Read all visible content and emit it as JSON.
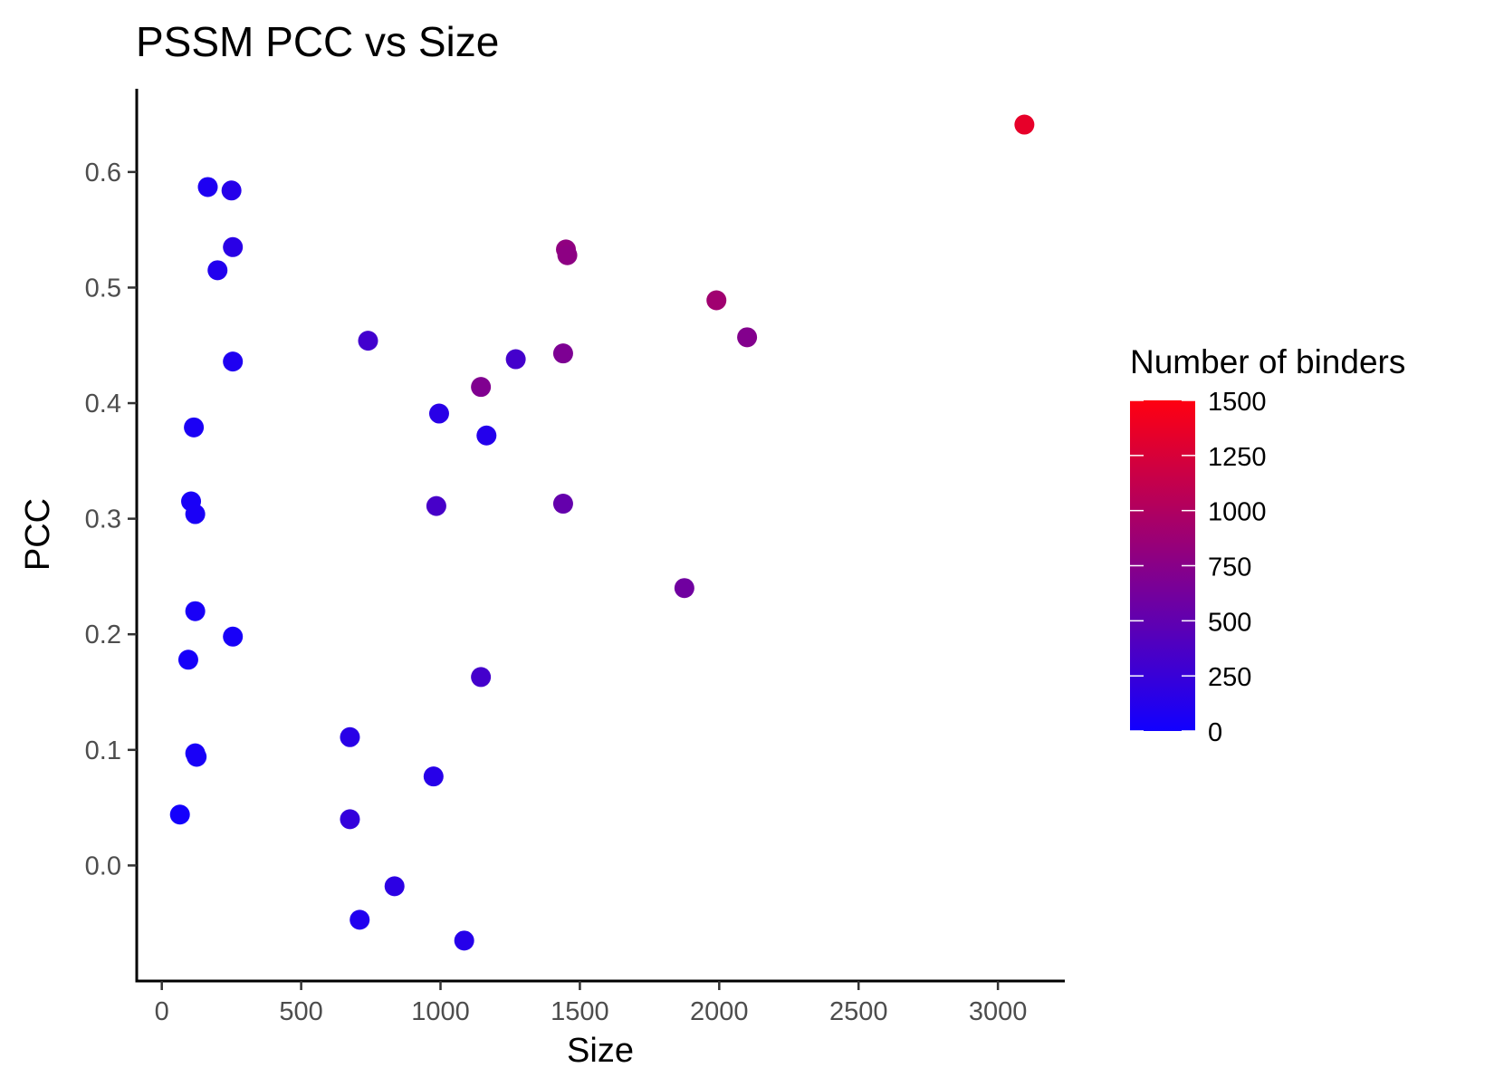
{
  "chart_data": {
    "type": "scatter",
    "title": "PSSM PCC vs Size",
    "xlabel": "Size",
    "ylabel": "PCC",
    "xlim": [
      -90,
      3240
    ],
    "ylim": [
      -0.1,
      0.672
    ],
    "x_ticks": [
      0,
      500,
      1000,
      1500,
      2000,
      2500,
      3000
    ],
    "x_tick_labels": [
      "0",
      "500",
      "1000",
      "1500",
      "2000",
      "2500",
      "3000"
    ],
    "y_ticks": [
      0.0,
      0.1,
      0.2,
      0.3,
      0.4,
      0.5,
      0.6
    ],
    "y_tick_labels": [
      "0.0",
      "0.1",
      "0.2",
      "0.3",
      "0.4",
      "0.5",
      "0.6"
    ],
    "grid": false,
    "legend": {
      "title": "Number of binders",
      "placement": "right",
      "range": [
        0,
        1500
      ],
      "ticks": [
        0,
        250,
        500,
        750,
        1000,
        1250,
        1500
      ],
      "tick_labels": [
        "0",
        "250",
        "500",
        "750",
        "1000",
        "1250",
        "1500"
      ],
      "low_color": "#1100ff",
      "high_color": "#ff0011"
    },
    "points": [
      {
        "x": 3095,
        "y": 0.641,
        "binders": 1350
      },
      {
        "x": 165,
        "y": 0.587,
        "binders": 80
      },
      {
        "x": 250,
        "y": 0.584,
        "binders": 130
      },
      {
        "x": 255,
        "y": 0.535,
        "binders": 160
      },
      {
        "x": 200,
        "y": 0.515,
        "binders": 110
      },
      {
        "x": 255,
        "y": 0.436,
        "binders": 90
      },
      {
        "x": 115,
        "y": 0.379,
        "binders": 60
      },
      {
        "x": 105,
        "y": 0.315,
        "binders": 50
      },
      {
        "x": 120,
        "y": 0.304,
        "binders": 55
      },
      {
        "x": 120,
        "y": 0.22,
        "binders": 50
      },
      {
        "x": 255,
        "y": 0.198,
        "binders": 45
      },
      {
        "x": 95,
        "y": 0.178,
        "binders": 40
      },
      {
        "x": 120,
        "y": 0.097,
        "binders": 45
      },
      {
        "x": 125,
        "y": 0.094,
        "binders": 50
      },
      {
        "x": 65,
        "y": 0.044,
        "binders": 20
      },
      {
        "x": 740,
        "y": 0.454,
        "binders": 310
      },
      {
        "x": 995,
        "y": 0.391,
        "binders": 150
      },
      {
        "x": 1145,
        "y": 0.414,
        "binders": 700
      },
      {
        "x": 1165,
        "y": 0.372,
        "binders": 120
      },
      {
        "x": 1270,
        "y": 0.438,
        "binders": 320
      },
      {
        "x": 985,
        "y": 0.311,
        "binders": 340
      },
      {
        "x": 1145,
        "y": 0.163,
        "binders": 320
      },
      {
        "x": 675,
        "y": 0.111,
        "binders": 150
      },
      {
        "x": 975,
        "y": 0.077,
        "binders": 140
      },
      {
        "x": 675,
        "y": 0.04,
        "binders": 220
      },
      {
        "x": 835,
        "y": -0.018,
        "binders": 170
      },
      {
        "x": 710,
        "y": -0.047,
        "binders": 100
      },
      {
        "x": 1085,
        "y": -0.065,
        "binders": 130
      },
      {
        "x": 1450,
        "y": 0.533,
        "binders": 800
      },
      {
        "x": 1455,
        "y": 0.528,
        "binders": 780
      },
      {
        "x": 1440,
        "y": 0.443,
        "binders": 680
      },
      {
        "x": 1440,
        "y": 0.313,
        "binders": 520
      },
      {
        "x": 1990,
        "y": 0.489,
        "binders": 900
      },
      {
        "x": 2100,
        "y": 0.457,
        "binders": 720
      },
      {
        "x": 1875,
        "y": 0.24,
        "binders": 600
      }
    ]
  }
}
